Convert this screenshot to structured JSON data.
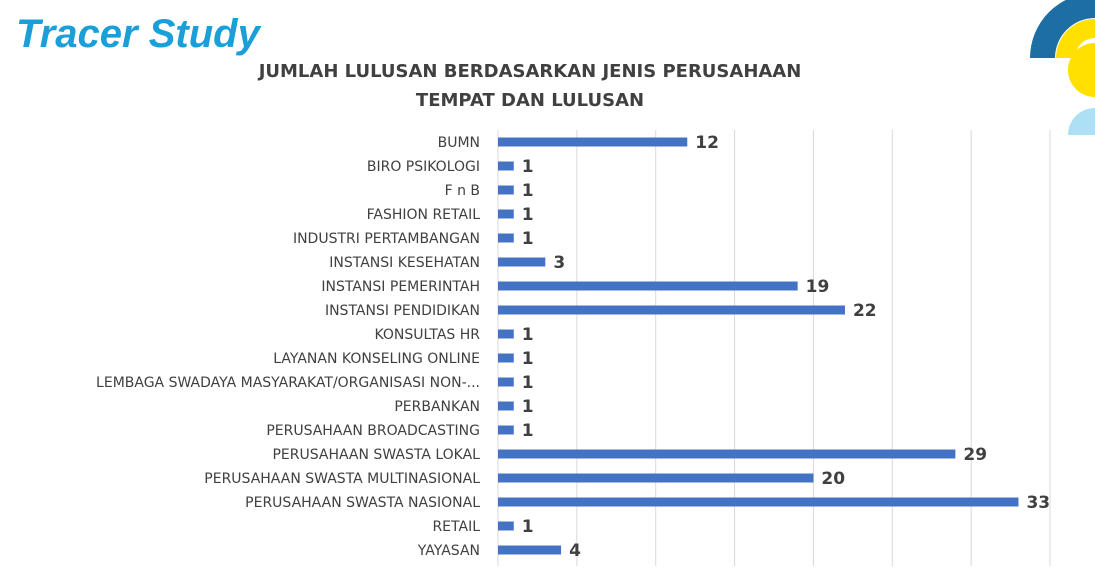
{
  "slide": {
    "title": "Tracer Study"
  },
  "chart_data": {
    "type": "bar",
    "orientation": "horizontal",
    "title": [
      "JUMLAH LULUSAN BERDASARKAN JENIS PERUSAHAAN",
      "TEMPAT DAN LULUSAN"
    ],
    "categories": [
      "BUMN",
      "BIRO PSIKOLOGI",
      "F n B",
      "FASHION RETAIL",
      "INDUSTRI PERTAMBANGAN",
      "INSTANSI KESEHATAN",
      "INSTANSI PEMERINTAH",
      "INSTANSI PENDIDIKAN",
      "KONSULTAS HR",
      "LAYANAN KONSELING ONLINE",
      "LEMBAGA SWADAYA MASYARAKAT/ORGANISASI NON-...",
      "PERBANKAN",
      "PERUSAHAAN BROADCASTING",
      "PERUSAHAAN SWASTA LOKAL",
      "PERUSAHAAN SWASTA MULTINASIONAL",
      "PERUSAHAAN SWASTA NASIONAL",
      "RETAIL",
      "YAYASAN"
    ],
    "values": [
      12,
      1,
      1,
      1,
      1,
      3,
      19,
      22,
      1,
      1,
      1,
      1,
      1,
      29,
      20,
      33,
      1,
      4
    ],
    "xlim": [
      0,
      35
    ],
    "gridlines": "vertical",
    "data_labels": true,
    "legend": "none",
    "bar_color": "#4472c4",
    "grid_color": "#d9d9d9"
  },
  "colors": {
    "title": "#1a9fd9",
    "deco_dark_blue": "#1d6fa3",
    "deco_yellow": "#ffe000",
    "deco_light_blue": "#aee0f5"
  }
}
